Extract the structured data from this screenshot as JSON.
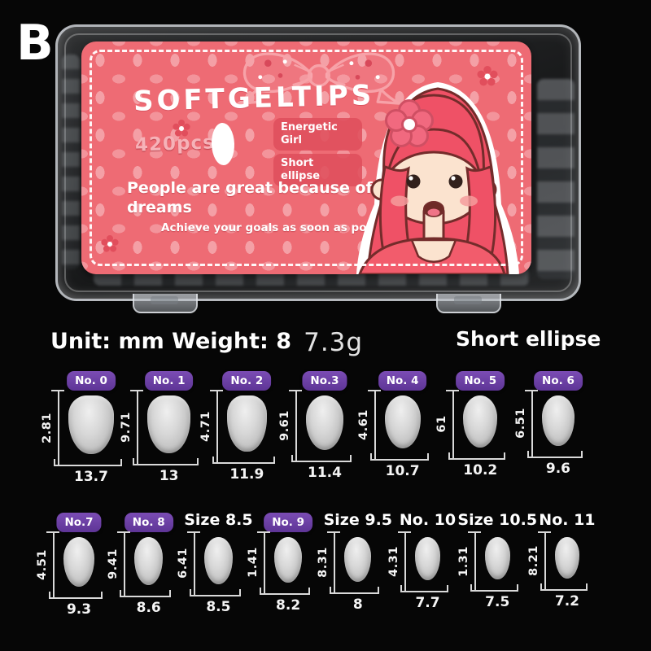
{
  "page": {
    "background": "#060606",
    "variant_letter": "B"
  },
  "product_box": {
    "label_title": "SOFTGELTIPS",
    "piece_count": "420pcs",
    "tag_energetic": [
      "Energetic",
      "Girl"
    ],
    "tag_shape": [
      "Short",
      "ellipse"
    ],
    "slogan": [
      "People are great because of",
      "dreams"
    ],
    "sub_slogan": "Achieve your goals as soon as possible.",
    "colors": {
      "label_pink": "#ee6b74",
      "tag_pink": "#df4e5c",
      "hair_red": "#ef5166",
      "skin": "#fbe3cf"
    }
  },
  "size_chart": {
    "unit_weight_label": "Unit: mm Weight: 8",
    "weight_value": "7.3g",
    "shape_title": "Short ellipse",
    "unit": "mm",
    "badge_color": "#6a3da0",
    "rows": [
      {
        "columns": [
          {
            "label": "No. 0",
            "style": "badge",
            "height_mm": "18.2",
            "width_mm": "13.7"
          },
          {
            "label": "No. 1",
            "style": "badge",
            "height_mm": "17.9",
            "width_mm": "13"
          },
          {
            "label": "No. 2",
            "style": "badge",
            "height_mm": "17.4",
            "width_mm": "11.9"
          },
          {
            "label": "No.3",
            "style": "badge",
            "height_mm": "16.9",
            "width_mm": "11.4"
          },
          {
            "label": "No. 4",
            "style": "badge",
            "height_mm": "16.4",
            "width_mm": "10.7"
          },
          {
            "label": "No. 5",
            "style": "badge",
            "height_mm": "16",
            "width_mm": "10.2"
          },
          {
            "label": "No. 6",
            "style": "badge",
            "height_mm": "15.6",
            "width_mm": "9.6"
          }
        ]
      },
      {
        "columns": [
          {
            "label": "No.7",
            "style": "badge",
            "height_mm": "15.4",
            "width_mm": "9.3"
          },
          {
            "label": "No. 8",
            "style": "badge",
            "height_mm": "14.9",
            "width_mm": "8.6"
          },
          {
            "label": "Size 8.5",
            "style": "text",
            "height_mm": "14.6",
            "width_mm": "8.5"
          },
          {
            "label": "No. 9",
            "style": "badge",
            "height_mm": "14.1",
            "width_mm": "8.2"
          },
          {
            "label": "Size 9.5",
            "style": "text",
            "height_mm": "13.8",
            "width_mm": "8"
          },
          {
            "label": "No. 10",
            "style": "text",
            "height_mm": "13.4",
            "width_mm": "7.7"
          },
          {
            "label": "Size 10.5",
            "style": "text",
            "height_mm": "13.1",
            "width_mm": "7.5"
          },
          {
            "label": "No. 11",
            "style": "text",
            "height_mm": "12.8",
            "width_mm": "7.2"
          }
        ]
      }
    ]
  }
}
